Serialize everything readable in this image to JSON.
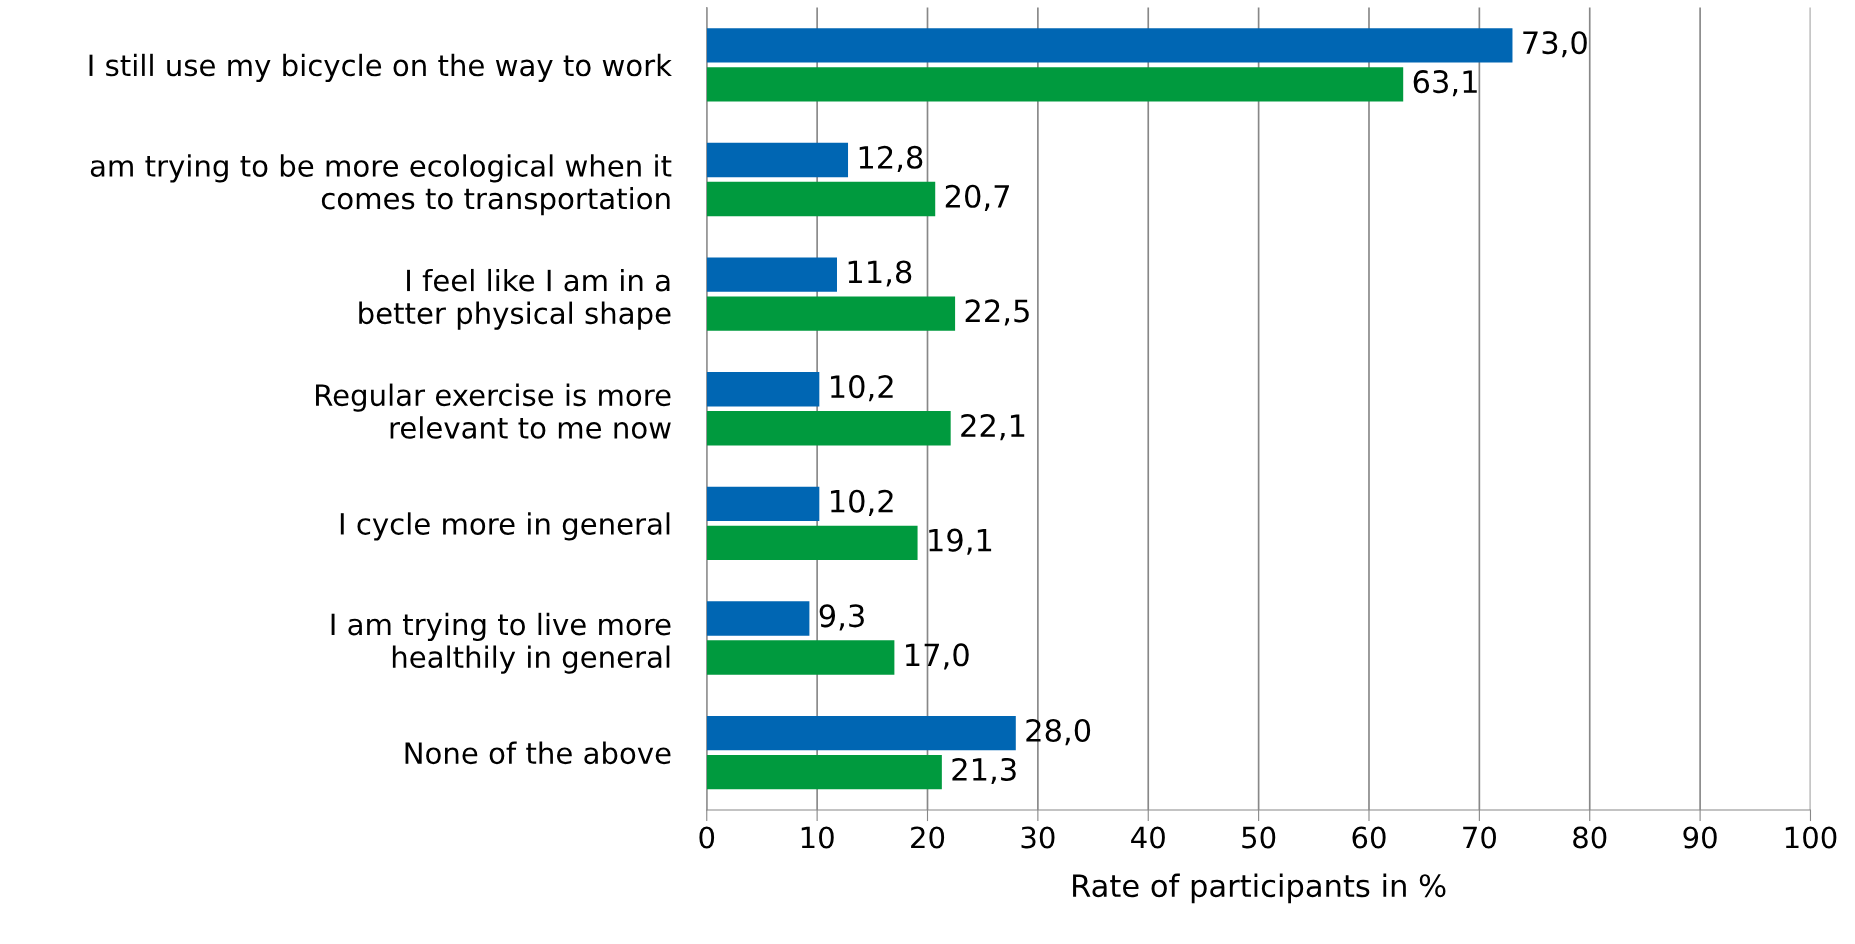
{
  "chart_data": {
    "type": "bar",
    "orientation": "horizontal",
    "xlabel": "Rate of participants in %",
    "categories": [
      "I still use my bicycle on the way to work",
      "am trying to be more ecological when it\ncomes to transportation",
      "I feel like I am in a\nbetter physical shape",
      "Regular exercise is more\nrelevant to me now",
      "I cycle more in general",
      "I am trying to live more\nhealthily in general",
      "None of the above"
    ],
    "series": [
      {
        "color": "#0066b3",
        "values": [
          73.0,
          12.8,
          11.8,
          10.2,
          10.2,
          9.3,
          28.0
        ],
        "value_labels": [
          "73,0",
          "12,8",
          "11,8",
          "10,2",
          "10,2",
          "9,3",
          "28,0"
        ]
      },
      {
        "color": "#009a3e",
        "values": [
          63.1,
          20.7,
          22.5,
          22.1,
          19.1,
          17.0,
          21.3
        ],
        "value_labels": [
          "63,1",
          "20,7",
          "22,5",
          "22,1",
          "19,1",
          "17,0",
          "21,3"
        ]
      }
    ],
    "xlim": [
      0,
      100
    ],
    "xticks": [
      0,
      10,
      20,
      30,
      40,
      50,
      60,
      70,
      80,
      90,
      100
    ],
    "grid": "x",
    "legend": false
  }
}
